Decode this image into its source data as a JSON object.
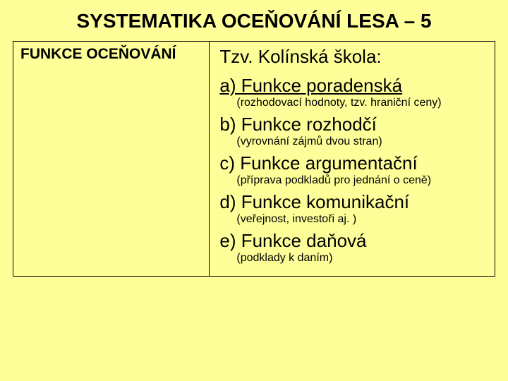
{
  "background_color": "#ffff99",
  "border_color": "#000000",
  "text_color": "#000000",
  "title": {
    "text": "SYSTEMATIKA OCEŇOVÁNÍ LESA – 5",
    "fontsize": 28
  },
  "left_header": {
    "text": "FUNKCE OCEŇOVÁNÍ",
    "fontsize": 21
  },
  "subtitle": {
    "text": "Tzv. Kolínská škola:",
    "fontsize": 26
  },
  "item_title_fontsize": 26,
  "item_desc_fontsize": 16,
  "items": [
    {
      "title": "a) Funkce poradenská",
      "underline": true,
      "desc": "(rozhodovací hodnoty, tzv. hraniční ceny)"
    },
    {
      "title": "b) Funkce rozhodčí",
      "underline": false,
      "desc": "(vyrovnání zájmů dvou stran)"
    },
    {
      "title": "c) Funkce argumentační",
      "underline": false,
      "desc": "(příprava podkladů pro jednání o ceně)"
    },
    {
      "title": "d) Funkce komunikační",
      "underline": false,
      "desc": "(veřejnost, investoři aj. )"
    },
    {
      "title": "e) Funkce daňová",
      "underline": false,
      "desc": "(podklady k daním)"
    }
  ]
}
